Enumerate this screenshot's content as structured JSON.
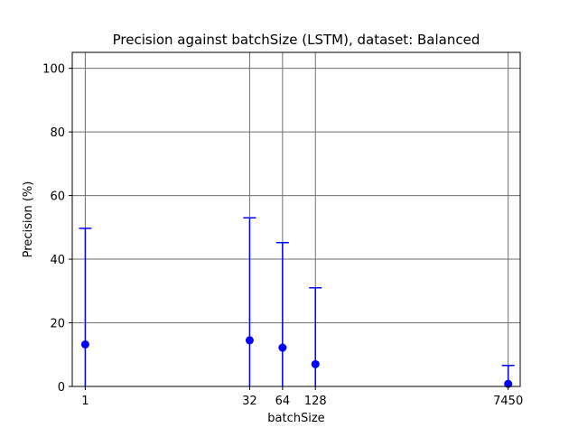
{
  "chart_data": {
    "type": "scatter",
    "title": "Precision against batchSize (LSTM), dataset: Balanced",
    "xlabel": "batchSize",
    "ylabel": "Precision (%)",
    "x_categories": [
      "1",
      "32",
      "64",
      "128",
      "7450"
    ],
    "x_scale": "log",
    "ylim": [
      0,
      105
    ],
    "y_ticks": [
      0,
      20,
      40,
      60,
      80,
      100
    ],
    "grid": true,
    "points": [
      {
        "x": 1,
        "y": 13.2,
        "yerr_lower": 13.2,
        "yerr_upper": 36.5
      },
      {
        "x": 32,
        "y": 14.5,
        "yerr_lower": 14.5,
        "yerr_upper": 38.5
      },
      {
        "x": 64,
        "y": 12.2,
        "yerr_lower": 12.2,
        "yerr_upper": 33.0
      },
      {
        "x": 128,
        "y": 7.0,
        "yerr_lower": 7.0,
        "yerr_upper": 24.0
      },
      {
        "x": 7450,
        "y": 0.8,
        "yerr_lower": 0.8,
        "yerr_upper": 5.8
      }
    ],
    "colors": {
      "series": "#0000ff",
      "grid": "#6e6e6e",
      "axes": "#000000"
    }
  }
}
